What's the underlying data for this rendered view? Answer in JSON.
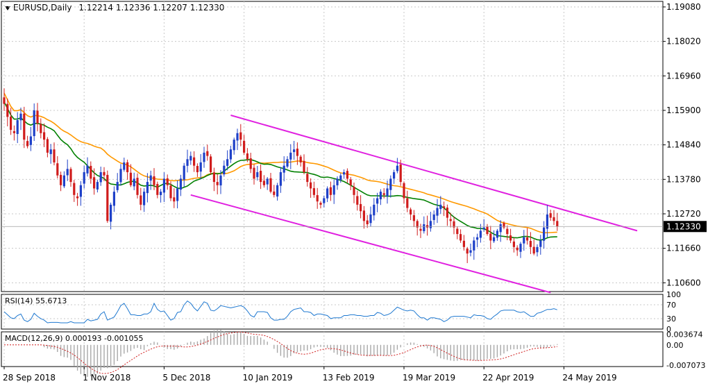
{
  "chart_data": {
    "type": "candlestick",
    "symbol": "EURUSD",
    "timeframe": "Daily",
    "ohlc_header": {
      "open": "1.12214",
      "high": "1.12336",
      "low": "1.12207",
      "close": "1.12330"
    },
    "current_price_label": "1.12330",
    "current_price": 1.1233,
    "price_axis": {
      "ylim": [
        1.1033,
        1.1925
      ],
      "ticks": [
        "1.19080",
        "1.18020",
        "1.16960",
        "1.15900",
        "1.14840",
        "1.13780",
        "1.12720",
        "1.11660",
        "1.10600"
      ]
    },
    "x_axis_labels": [
      {
        "label": "28 Sep 2018",
        "index": 0
      },
      {
        "label": "1 Nov 2018",
        "index": 24
      },
      {
        "label": "5 Dec 2018",
        "index": 48
      },
      {
        "label": "10 Jan 2019",
        "index": 72
      },
      {
        "label": "13 Feb 2019",
        "index": 96
      },
      {
        "label": "19 Mar 2019",
        "index": 120
      },
      {
        "label": "22 Apr 2019",
        "index": 144
      },
      {
        "label": "24 May 2019",
        "index": 168
      }
    ],
    "candles_close": [
      1.161,
      1.157,
      1.153,
      1.152,
      1.156,
      1.158,
      1.15,
      1.148,
      1.151,
      1.159,
      1.155,
      1.152,
      1.15,
      1.146,
      1.147,
      1.143,
      1.139,
      1.136,
      1.139,
      1.141,
      1.137,
      1.133,
      1.132,
      1.136,
      1.14,
      1.142,
      1.138,
      1.135,
      1.137,
      1.14,
      1.139,
      1.125,
      1.13,
      1.134,
      1.137,
      1.141,
      1.143,
      1.14,
      1.136,
      1.138,
      1.133,
      1.13,
      1.134,
      1.137,
      1.139,
      1.136,
      1.133,
      1.134,
      1.138,
      1.136,
      1.132,
      1.131,
      1.135,
      1.138,
      1.142,
      1.144,
      1.145,
      1.142,
      1.14,
      1.143,
      1.146,
      1.145,
      1.14,
      1.137,
      1.136,
      1.139,
      1.142,
      1.144,
      1.147,
      1.15,
      1.152,
      1.15,
      1.146,
      1.144,
      1.141,
      1.138,
      1.14,
      1.137,
      1.136,
      1.138,
      1.134,
      1.133,
      1.136,
      1.14,
      1.142,
      1.144,
      1.146,
      1.147,
      1.145,
      1.143,
      1.14,
      1.137,
      1.135,
      1.133,
      1.131,
      1.13,
      1.132,
      1.135,
      1.133,
      1.136,
      1.138,
      1.139,
      1.14,
      1.138,
      1.136,
      1.133,
      1.13,
      1.128,
      1.125,
      1.124,
      1.127,
      1.13,
      1.132,
      1.134,
      1.133,
      1.135,
      1.138,
      1.14,
      1.142,
      1.137,
      1.132,
      1.129,
      1.127,
      1.125,
      1.123,
      1.122,
      1.124,
      1.123,
      1.125,
      1.127,
      1.129,
      1.13,
      1.129,
      1.126,
      1.125,
      1.123,
      1.121,
      1.119,
      1.117,
      1.115,
      1.116,
      1.119,
      1.12,
      1.122,
      1.123,
      1.121,
      1.119,
      1.12,
      1.122,
      1.124,
      1.123,
      1.121,
      1.119,
      1.117,
      1.116,
      1.118,
      1.12,
      1.119,
      1.117,
      1.115,
      1.117,
      1.119,
      1.123,
      1.127,
      1.126,
      1.125,
      1.1233
    ],
    "overlays": [
      {
        "name": "MA (orange)",
        "color": "#ff9900",
        "start": 1.164,
        "end": 1.127
      },
      {
        "name": "MA (green)",
        "color": "#008000",
        "start": 1.162,
        "end": 1.123
      }
    ],
    "channel": {
      "color": "#e020e0",
      "upper": [
        {
          "index": 68,
          "price": 1.1575
        },
        {
          "index": 190,
          "price": 1.122
        }
      ],
      "lower": [
        {
          "index": 56,
          "price": 1.133
        },
        {
          "index": 164,
          "price": 1.103
        }
      ]
    },
    "rsi": {
      "label": "RSI(14) 55.6713",
      "ticks": [
        "100",
        "70",
        "30",
        "0"
      ],
      "ylim": [
        0,
        100
      ],
      "last": 55.67
    },
    "macd": {
      "label": "MACD(12,26,9) 0.000193 -0.001055",
      "ticks": [
        "0.003674",
        "0.00",
        "-0.007073"
      ],
      "ylim": [
        -0.0075,
        0.0045
      ]
    }
  }
}
